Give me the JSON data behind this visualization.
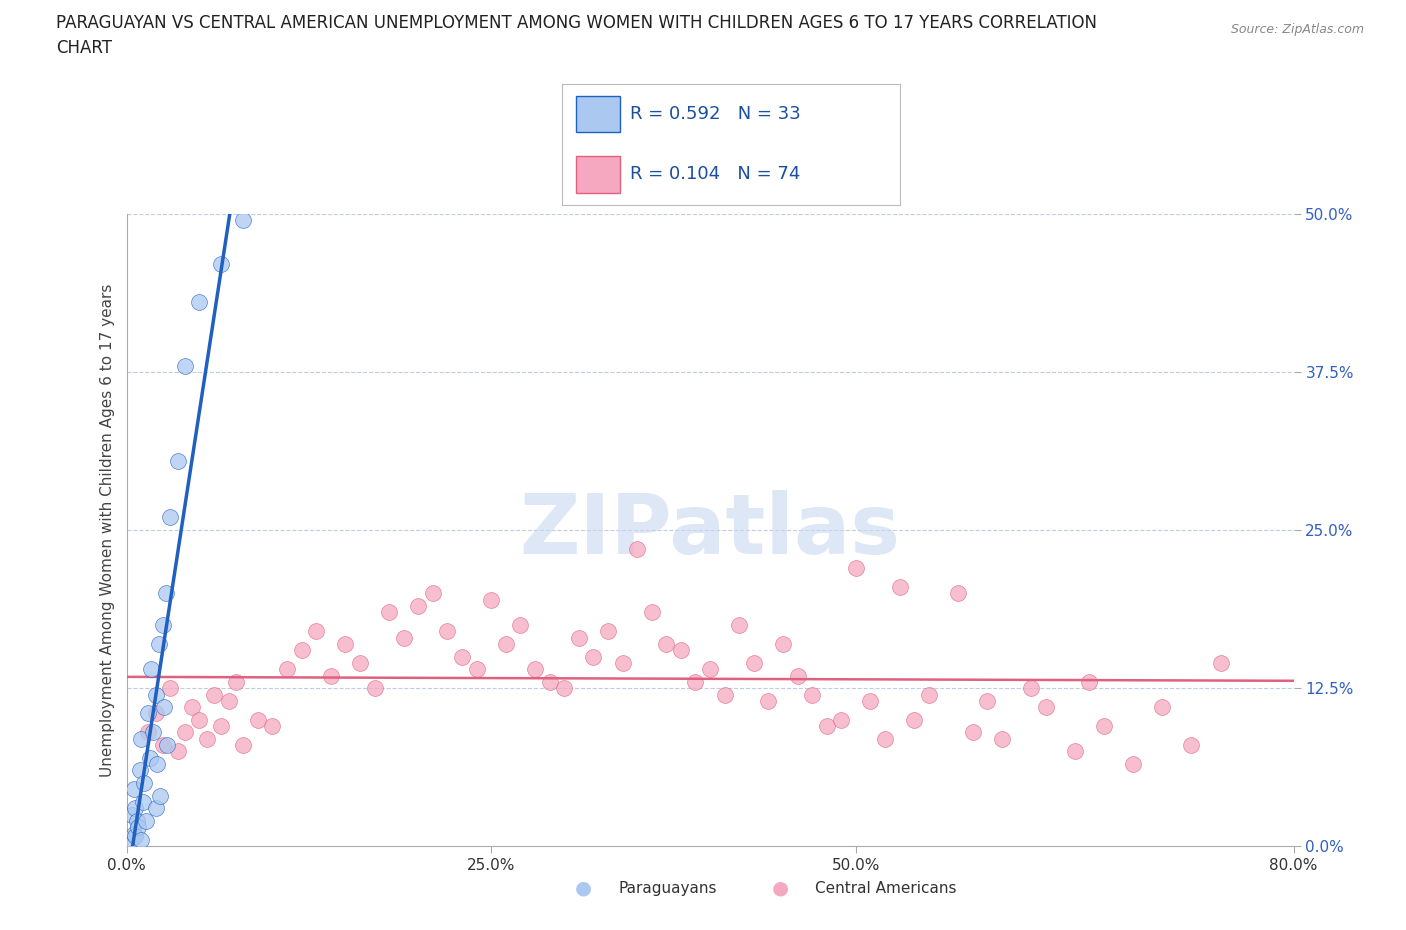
{
  "title_line1": "PARAGUAYAN VS CENTRAL AMERICAN UNEMPLOYMENT AMONG WOMEN WITH CHILDREN AGES 6 TO 17 YEARS CORRELATION",
  "title_line2": "CHART",
  "source": "Source: ZipAtlas.com",
  "ylabel": "Unemployment Among Women with Children Ages 6 to 17 years",
  "paraguayan_label": "Paraguayans",
  "central_label": "Central Americans",
  "xlim": [
    0,
    80
  ],
  "ylim": [
    0,
    50
  ],
  "xtick_vals": [
    0,
    25,
    50,
    80
  ],
  "xtick_labels": [
    "0.0%",
    "25.0%",
    "50.0%",
    "80.0%"
  ],
  "ytick_vals": [
    0,
    12.5,
    25,
    37.5,
    50
  ],
  "ytick_labels": [
    "0.0%",
    "12.5%",
    "25.0%",
    "37.5%",
    "50.0%"
  ],
  "paraguayan_R": 0.592,
  "paraguayan_N": 33,
  "central_R": 0.104,
  "central_N": 74,
  "paraguayan_color": "#aac8f0",
  "central_color": "#f5a8c0",
  "paraguayan_line_color": "#2060c0",
  "central_line_color": "#e06080",
  "watermark_text": "ZIPatlas",
  "watermark_color": "#c8d8f0",
  "background_color": "#ffffff",
  "grid_color": "#c0cce0",
  "legend_R_color": "#1a4fa0",
  "para_x": [
    0.3,
    0.4,
    0.5,
    0.5,
    0.6,
    0.6,
    0.7,
    0.8,
    0.9,
    1.0,
    1.0,
    1.1,
    1.2,
    1.3,
    1.5,
    1.6,
    1.7,
    1.8,
    2.0,
    2.0,
    2.1,
    2.2,
    2.3,
    2.5,
    2.6,
    2.7,
    2.8,
    3.0,
    3.5,
    4.0,
    5.0,
    6.5,
    8.0
  ],
  "para_y": [
    0.5,
    2.5,
    1.0,
    4.5,
    0.8,
    3.0,
    2.0,
    1.5,
    6.0,
    0.5,
    8.5,
    3.5,
    5.0,
    2.0,
    10.5,
    7.0,
    14.0,
    9.0,
    12.0,
    3.0,
    6.5,
    16.0,
    4.0,
    17.5,
    11.0,
    20.0,
    8.0,
    26.0,
    30.5,
    38.0,
    43.0,
    46.0,
    49.5
  ],
  "ca_x": [
    1.5,
    2.0,
    2.5,
    3.0,
    3.5,
    4.0,
    4.5,
    5.0,
    5.5,
    6.0,
    6.5,
    7.0,
    7.5,
    8.0,
    9.0,
    10.0,
    11.0,
    12.0,
    13.0,
    14.0,
    15.0,
    16.0,
    17.0,
    18.0,
    19.0,
    20.0,
    21.0,
    22.0,
    23.0,
    24.0,
    25.0,
    26.0,
    27.0,
    28.0,
    29.0,
    30.0,
    31.0,
    32.0,
    33.0,
    34.0,
    35.0,
    36.0,
    37.0,
    38.0,
    39.0,
    40.0,
    41.0,
    42.0,
    43.0,
    44.0,
    45.0,
    46.0,
    47.0,
    48.0,
    49.0,
    50.0,
    51.0,
    52.0,
    53.0,
    54.0,
    55.0,
    57.0,
    58.0,
    59.0,
    60.0,
    62.0,
    63.0,
    65.0,
    66.0,
    67.0,
    69.0,
    71.0,
    73.0,
    75.0
  ],
  "ca_y": [
    9.0,
    10.5,
    8.0,
    12.5,
    7.5,
    9.0,
    11.0,
    10.0,
    8.5,
    12.0,
    9.5,
    11.5,
    13.0,
    8.0,
    10.0,
    9.5,
    14.0,
    15.5,
    17.0,
    13.5,
    16.0,
    14.5,
    12.5,
    18.5,
    16.5,
    19.0,
    20.0,
    17.0,
    15.0,
    14.0,
    19.5,
    16.0,
    17.5,
    14.0,
    13.0,
    12.5,
    16.5,
    15.0,
    17.0,
    14.5,
    23.5,
    18.5,
    16.0,
    15.5,
    13.0,
    14.0,
    12.0,
    17.5,
    14.5,
    11.5,
    16.0,
    13.5,
    12.0,
    9.5,
    10.0,
    22.0,
    11.5,
    8.5,
    20.5,
    10.0,
    12.0,
    20.0,
    9.0,
    11.5,
    8.5,
    12.5,
    11.0,
    7.5,
    13.0,
    9.5,
    6.5,
    11.0,
    8.0,
    14.5
  ]
}
